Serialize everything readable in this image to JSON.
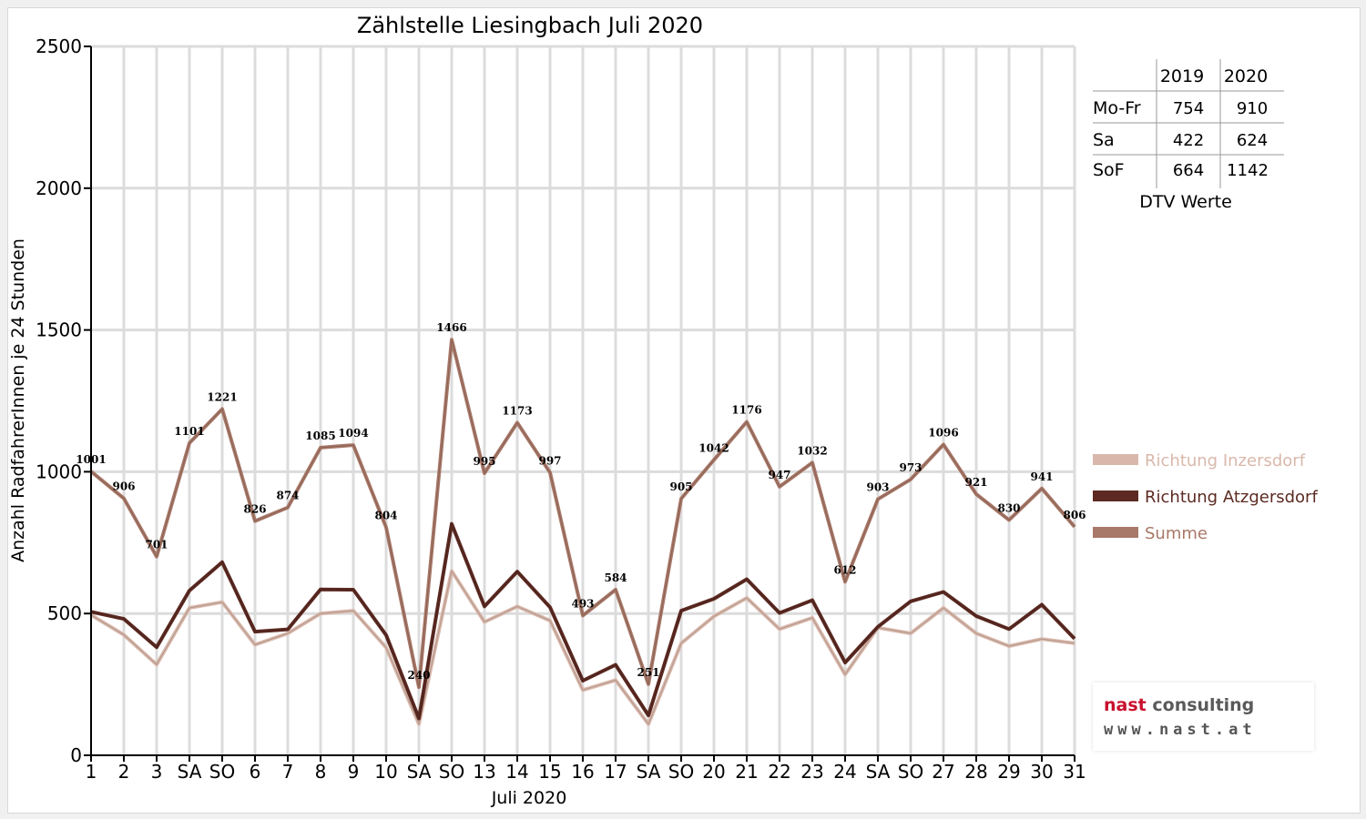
{
  "chart_data": {
    "type": "line",
    "title": "Zählstelle Liesingbach Juli 2020",
    "xlabel": "Juli 2020",
    "ylabel": "Anzahl RadfahrerInnen je 24 Stunden",
    "ylim": [
      0,
      2500
    ],
    "yticks": [
      "0",
      "500",
      "1000",
      "1500",
      "2000",
      "2500"
    ],
    "categories": [
      "1",
      "2",
      "3",
      "SA",
      "SO",
      "6",
      "7",
      "8",
      "9",
      "10",
      "SA",
      "SO",
      "13",
      "14",
      "15",
      "16",
      "17",
      "SA",
      "SO",
      "20",
      "21",
      "22",
      "23",
      "24",
      "SA",
      "SO",
      "27",
      "28",
      "29",
      "30",
      "31"
    ],
    "weekend_color": "#ff0000",
    "grid": true,
    "legend_position": "right",
    "series": [
      {
        "name": "Richtung Inzersdorf",
        "color": "#d9b8ab",
        "values": [
          495,
          425,
          320,
          520,
          540,
          390,
          430,
          500,
          510,
          380,
          110,
          650,
          470,
          525,
          475,
          230,
          265,
          110,
          395,
          490,
          555,
          445,
          485,
          285,
          450,
          430,
          520,
          430,
          385,
          410,
          395
        ]
      },
      {
        "name": "Richtung Atzgersdorf",
        "color": "#5c2a22",
        "values": [
          506,
          481,
          381,
          581,
          681,
          436,
          444,
          585,
          584,
          424,
          130,
          816,
          525,
          648,
          522,
          263,
          319,
          141,
          510,
          552,
          621,
          502,
          547,
          327,
          453,
          543,
          576,
          491,
          445,
          531,
          411
        ]
      },
      {
        "name": "Summe",
        "color": "#a87868",
        "values": [
          1001,
          906,
          701,
          1101,
          1221,
          826,
          874,
          1085,
          1094,
          804,
          240,
          1466,
          995,
          1173,
          997,
          493,
          584,
          251,
          905,
          1042,
          1176,
          947,
          1032,
          612,
          903,
          973,
          1096,
          921,
          830,
          941,
          806
        ]
      }
    ],
    "data_labels": [
      "1001",
      "906",
      "701",
      "1101",
      "1221",
      "826",
      "874",
      "1085",
      "1094",
      "804",
      "240",
      "1466",
      "995",
      "1173",
      "997",
      "493",
      "584",
      "251",
      "905",
      "1042",
      "1176",
      "947",
      "1032",
      "612",
      "903",
      "973",
      "1096",
      "921",
      "830",
      "941",
      "806"
    ]
  },
  "dtv_table": {
    "headers": [
      "",
      "2019",
      "2020"
    ],
    "rows": [
      {
        "label": "Mo-Fr",
        "v2019": "754",
        "v2020": "910"
      },
      {
        "label": "Sa",
        "v2019": "422",
        "v2020": "624"
      },
      {
        "label": "SoF",
        "v2019": "664",
        "v2020": "1142"
      }
    ],
    "caption": "DTV Werte"
  },
  "logo": {
    "line1_red": "nast",
    "line1_gray": "consulting",
    "line2": "www.nast.at"
  }
}
